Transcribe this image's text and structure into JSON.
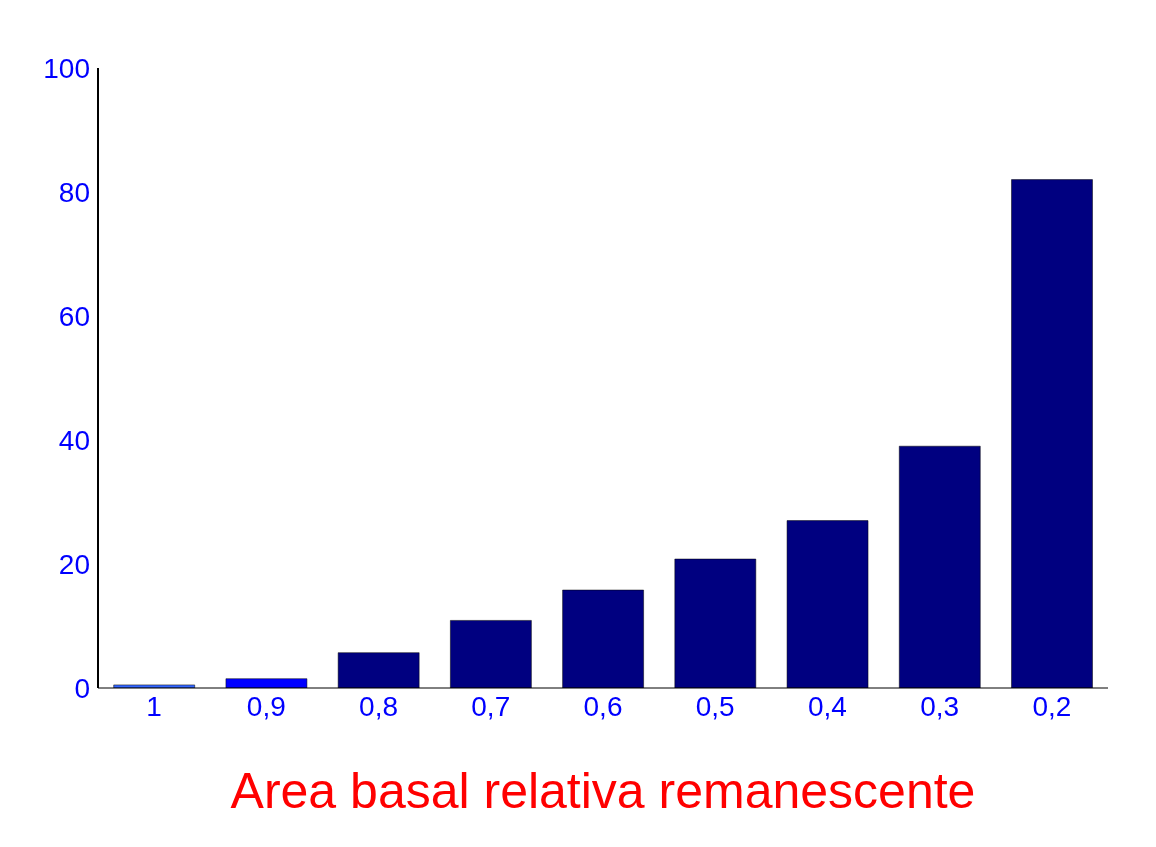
{
  "chart_data": {
    "type": "bar",
    "xlabel": "Area basal relativa remanescente",
    "categories": [
      "1",
      "0,9",
      "0,8",
      "0,7",
      "0,6",
      "0,5",
      "0,4",
      "0,3",
      "0,2"
    ],
    "values": [
      0.5,
      1.5,
      5.7,
      10.9,
      15.8,
      20.8,
      27,
      39,
      82
    ],
    "colors": [
      "#3366ff",
      "#0000ff",
      "#000080",
      "#000080",
      "#000080",
      "#000080",
      "#000080",
      "#000080",
      "#000080"
    ],
    "ylim": [
      0,
      100
    ],
    "yticks": [
      0,
      20,
      40,
      60,
      80,
      100
    ],
    "grid": false
  }
}
